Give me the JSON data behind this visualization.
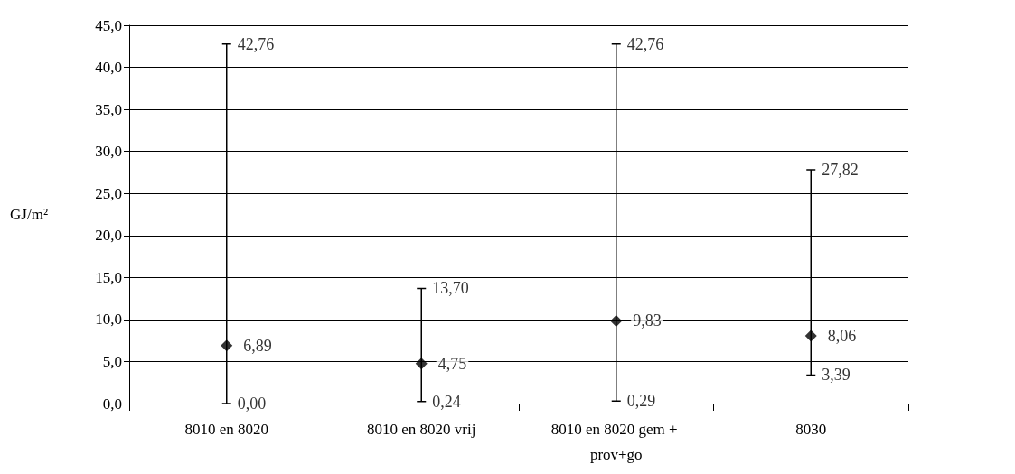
{
  "chart_data": {
    "type": "scatter",
    "ylabel": "GJ/m²",
    "categories": [
      "8010 en 8020",
      "8010 en 8020 vrij",
      "8010 en 8020 gem + prov+go",
      "8030"
    ],
    "values": [
      6.89,
      4.75,
      9.83,
      8.06
    ],
    "value_labels": [
      "6,89",
      "4,75",
      "9,83",
      "8,06"
    ],
    "errors": [
      [
        0,
        42.76
      ],
      [
        0.24,
        13.7
      ],
      [
        0.29,
        42.76
      ],
      [
        3.39,
        27.82
      ]
    ],
    "annotations": [
      {
        "text": "0,00",
        "x": "8010 en 8020",
        "y": 0
      },
      {
        "text": "42,76",
        "x": "8010 en 8020",
        "y": 42.76
      },
      {
        "text": "0,24",
        "x": "8010 en 8020 vrij",
        "y": 0.24
      },
      {
        "text": "13,70",
        "x": "8010 en 8020 vrij",
        "y": 13.7
      },
      {
        "text": "0,29",
        "x": "8010 en 8020 gem + prov+go",
        "y": 0.29
      },
      {
        "text": "42,76",
        "x": "8010 en 8020 gem + prov+go",
        "y": 42.76
      },
      {
        "text": "3,39",
        "x": "8030",
        "y": 3.39
      },
      {
        "text": "27,82",
        "x": "8030",
        "y": 27.82
      }
    ],
    "color": "#000000",
    "marker": "diamond",
    "ylim": [
      0,
      45
    ],
    "yticks": [
      {
        "value": 0,
        "label": "0,0"
      },
      {
        "value": 5,
        "label": "5,0"
      },
      {
        "value": 10,
        "label": "10,0"
      },
      {
        "value": 15,
        "label": "15,0"
      },
      {
        "value": 20,
        "label": "20,0"
      },
      {
        "value": 25,
        "label": "25,0"
      },
      {
        "value": 30,
        "label": "30,0"
      },
      {
        "value": 35,
        "label": "35,0"
      },
      {
        "value": 40,
        "label": "40,0"
      },
      {
        "value": 45,
        "label": "45,0"
      }
    ],
    "grid": "y"
  }
}
